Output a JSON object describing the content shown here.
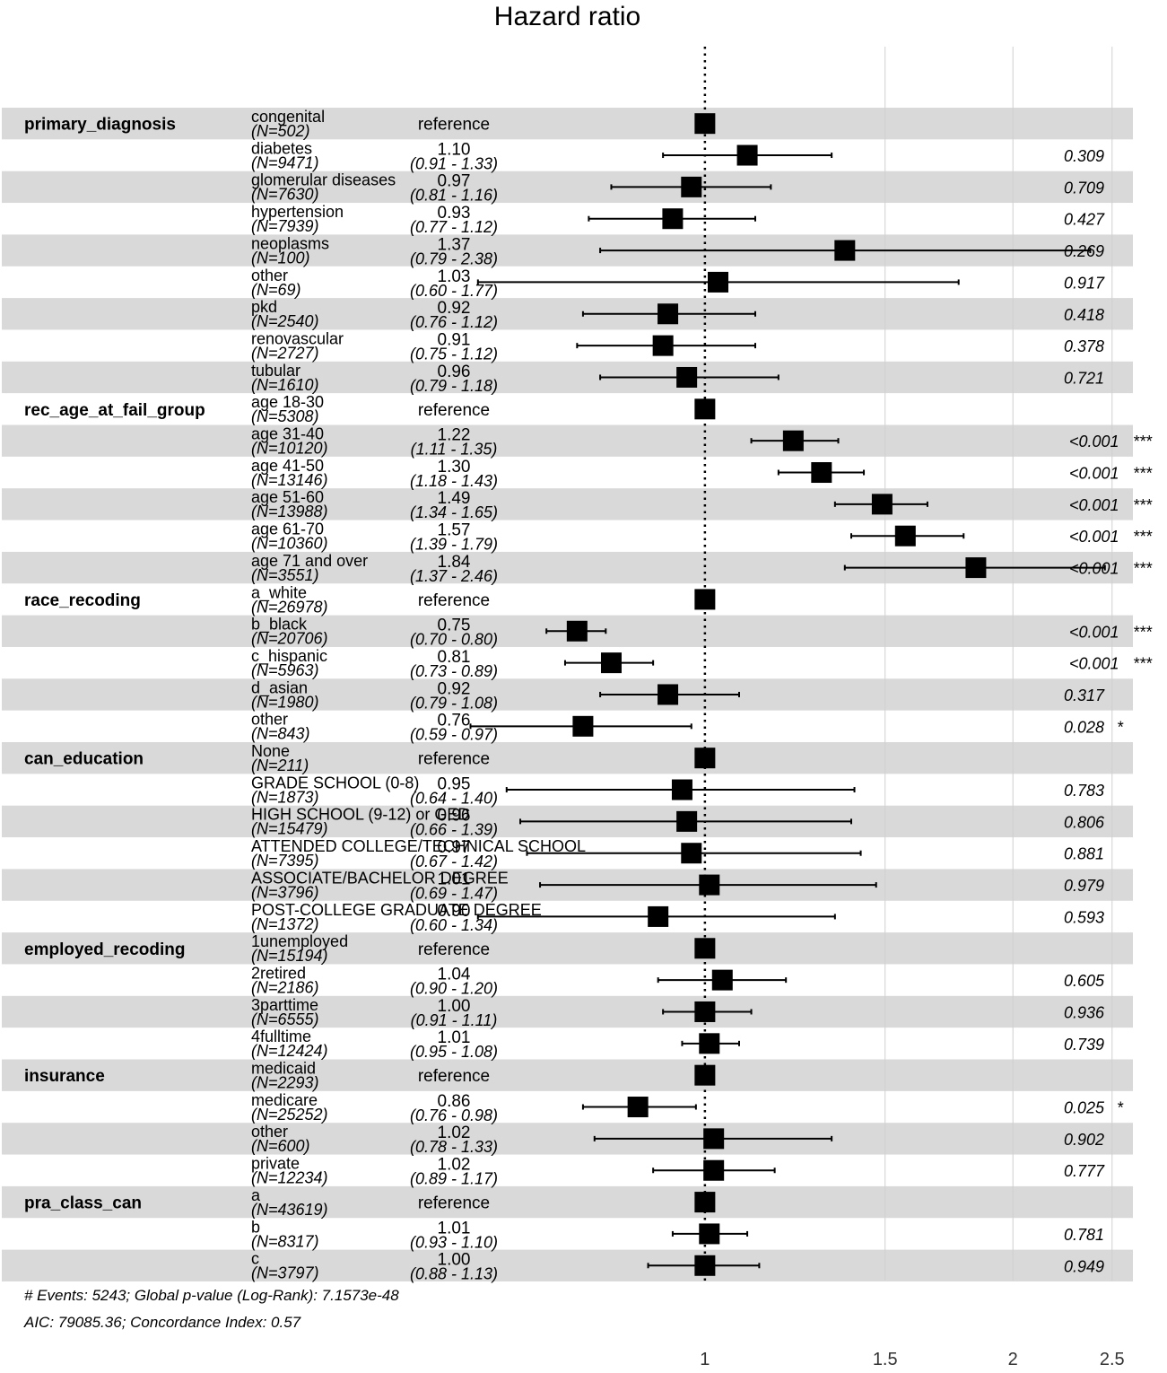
{
  "chart_data": {
    "type": "forest",
    "title": "Hazard ratio",
    "x_scale": "log",
    "xlim": [
      0.61,
      2.62
    ],
    "reference_line": 1,
    "x_ticks": [
      1,
      1.5,
      2,
      2.5
    ],
    "x_tick_labels": [
      "1",
      "1.5",
      "2",
      "2.5"
    ],
    "groups": [
      {
        "variable": "primary_diagnosis",
        "rows": [
          {
            "level": "congenital",
            "n": "(N=502)",
            "hr": 1.0,
            "estimate": "reference",
            "ci": "",
            "lower": null,
            "upper": null,
            "p": "",
            "stars": ""
          },
          {
            "level": "diabetes",
            "n": "(N=9471)",
            "hr": 1.1,
            "estimate": "1.10",
            "ci": "(0.91 - 1.33)",
            "lower": 0.91,
            "upper": 1.33,
            "p": "0.309",
            "stars": ""
          },
          {
            "level": "glomerular diseases",
            "n": "(N=7630)",
            "hr": 0.97,
            "estimate": "0.97",
            "ci": "(0.81 - 1.16)",
            "lower": 0.81,
            "upper": 1.16,
            "p": "0.709",
            "stars": ""
          },
          {
            "level": "hypertension",
            "n": "(N=7939)",
            "hr": 0.93,
            "estimate": "0.93",
            "ci": "(0.77 - 1.12)",
            "lower": 0.77,
            "upper": 1.12,
            "p": "0.427",
            "stars": ""
          },
          {
            "level": "neoplasms",
            "n": "(N=100)",
            "hr": 1.37,
            "estimate": "1.37",
            "ci": "(0.79 - 2.38)",
            "lower": 0.79,
            "upper": 2.38,
            "p": "0.269",
            "stars": ""
          },
          {
            "level": "other",
            "n": "(N=69)",
            "hr": 1.03,
            "estimate": "1.03",
            "ci": "(0.60 - 1.77)",
            "lower": 0.6,
            "upper": 1.77,
            "p": "0.917",
            "stars": ""
          },
          {
            "level": "pkd",
            "n": "(N=2540)",
            "hr": 0.92,
            "estimate": "0.92",
            "ci": "(0.76 - 1.12)",
            "lower": 0.76,
            "upper": 1.12,
            "p": "0.418",
            "stars": ""
          },
          {
            "level": "renovascular",
            "n": "(N=2727)",
            "hr": 0.91,
            "estimate": "0.91",
            "ci": "(0.75 - 1.12)",
            "lower": 0.75,
            "upper": 1.12,
            "p": "0.378",
            "stars": ""
          },
          {
            "level": "tubular",
            "n": "(N=1610)",
            "hr": 0.96,
            "estimate": "0.96",
            "ci": "(0.79 - 1.18)",
            "lower": 0.79,
            "upper": 1.18,
            "p": "0.721",
            "stars": ""
          }
        ]
      },
      {
        "variable": "rec_age_at_fail_group",
        "rows": [
          {
            "level": "age 18-30",
            "n": "(N=5308)",
            "hr": 1.0,
            "estimate": "reference",
            "ci": "",
            "lower": null,
            "upper": null,
            "p": "",
            "stars": ""
          },
          {
            "level": "age 31-40",
            "n": "(N=10120)",
            "hr": 1.22,
            "estimate": "1.22",
            "ci": "(1.11 - 1.35)",
            "lower": 1.11,
            "upper": 1.35,
            "p": "<0.001",
            "stars": "***"
          },
          {
            "level": "age 41-50",
            "n": "(N=13146)",
            "hr": 1.3,
            "estimate": "1.30",
            "ci": "(1.18 - 1.43)",
            "lower": 1.18,
            "upper": 1.43,
            "p": "<0.001",
            "stars": "***"
          },
          {
            "level": "age 51-60",
            "n": "(N=13988)",
            "hr": 1.49,
            "estimate": "1.49",
            "ci": "(1.34 - 1.65)",
            "lower": 1.34,
            "upper": 1.65,
            "p": "<0.001",
            "stars": "***"
          },
          {
            "level": "age 61-70",
            "n": "(N=10360)",
            "hr": 1.57,
            "estimate": "1.57",
            "ci": "(1.39 - 1.79)",
            "lower": 1.39,
            "upper": 1.79,
            "p": "<0.001",
            "stars": "***"
          },
          {
            "level": "age 71 and over",
            "n": "(N=3551)",
            "hr": 1.84,
            "estimate": "1.84",
            "ci": "(1.37 - 2.46)",
            "lower": 1.37,
            "upper": 2.46,
            "p": "<0.001",
            "stars": "***"
          }
        ]
      },
      {
        "variable": "race_recoding",
        "rows": [
          {
            "level": "a_white",
            "n": "(N=26978)",
            "hr": 1.0,
            "estimate": "reference",
            "ci": "",
            "lower": null,
            "upper": null,
            "p": "",
            "stars": ""
          },
          {
            "level": "b_black",
            "n": "(N=20706)",
            "hr": 0.75,
            "estimate": "0.75",
            "ci": "(0.70 - 0.80)",
            "lower": 0.7,
            "upper": 0.8,
            "p": "<0.001",
            "stars": "***"
          },
          {
            "level": "c_hispanic",
            "n": "(N=5963)",
            "hr": 0.81,
            "estimate": "0.81",
            "ci": "(0.73 - 0.89)",
            "lower": 0.73,
            "upper": 0.89,
            "p": "<0.001",
            "stars": "***"
          },
          {
            "level": "d_asian",
            "n": "(N=1980)",
            "hr": 0.92,
            "estimate": "0.92",
            "ci": "(0.79 - 1.08)",
            "lower": 0.79,
            "upper": 1.08,
            "p": "0.317",
            "stars": ""
          },
          {
            "level": "other",
            "n": "(N=843)",
            "hr": 0.76,
            "estimate": "0.76",
            "ci": "(0.59 - 0.97)",
            "lower": 0.59,
            "upper": 0.97,
            "p": "0.028",
            "stars": "*"
          }
        ]
      },
      {
        "variable": "can_education",
        "rows": [
          {
            "level": "None",
            "n": "(N=211)",
            "hr": 1.0,
            "estimate": "reference",
            "ci": "",
            "lower": null,
            "upper": null,
            "p": "",
            "stars": ""
          },
          {
            "level": "GRADE SCHOOL (0-8)",
            "n": "(N=1873)",
            "hr": 0.95,
            "estimate": "0.95",
            "ci": "(0.64 - 1.40)",
            "lower": 0.64,
            "upper": 1.4,
            "p": "0.783",
            "stars": ""
          },
          {
            "level": "HIGH SCHOOL (9-12) or GED",
            "n": "(N=15479)",
            "hr": 0.96,
            "estimate": "0.96",
            "ci": "(0.66 - 1.39)",
            "lower": 0.66,
            "upper": 1.39,
            "p": "0.806",
            "stars": ""
          },
          {
            "level": "ATTENDED COLLEGE/TECHNICAL SCHOOL",
            "n": "(N=7395)",
            "hr": 0.97,
            "estimate": "0.97",
            "ci": "(0.67 - 1.42)",
            "lower": 0.67,
            "upper": 1.42,
            "p": "0.881",
            "stars": ""
          },
          {
            "level": "ASSOCIATE/BACHELOR DEGREE",
            "n": "(N=3796)",
            "hr": 1.01,
            "estimate": "1.01",
            "ci": "(0.69 - 1.47)",
            "lower": 0.69,
            "upper": 1.47,
            "p": "0.979",
            "stars": ""
          },
          {
            "level": "POST-COLLEGE GRADUATE DEGREE",
            "n": "(N=1372)",
            "hr": 0.9,
            "estimate": "0.90",
            "ci": "(0.60 - 1.34)",
            "lower": 0.6,
            "upper": 1.34,
            "p": "0.593",
            "stars": ""
          }
        ]
      },
      {
        "variable": "employed_recoding",
        "rows": [
          {
            "level": "1unemployed",
            "n": "(N=15194)",
            "hr": 1.0,
            "estimate": "reference",
            "ci": "",
            "lower": null,
            "upper": null,
            "p": "",
            "stars": ""
          },
          {
            "level": "2retired",
            "n": "(N=2186)",
            "hr": 1.04,
            "estimate": "1.04",
            "ci": "(0.90 - 1.20)",
            "lower": 0.9,
            "upper": 1.2,
            "p": "0.605",
            "stars": ""
          },
          {
            "level": "3parttime",
            "n": "(N=6555)",
            "hr": 1.0,
            "estimate": "1.00",
            "ci": "(0.91 - 1.11)",
            "lower": 0.91,
            "upper": 1.11,
            "p": "0.936",
            "stars": ""
          },
          {
            "level": "4fulltime",
            "n": "(N=12424)",
            "hr": 1.01,
            "estimate": "1.01",
            "ci": "(0.95 - 1.08)",
            "lower": 0.95,
            "upper": 1.08,
            "p": "0.739",
            "stars": ""
          }
        ]
      },
      {
        "variable": "insurance",
        "rows": [
          {
            "level": "medicaid",
            "n": "(N=2293)",
            "hr": 1.0,
            "estimate": "reference",
            "ci": "",
            "lower": null,
            "upper": null,
            "p": "",
            "stars": ""
          },
          {
            "level": "medicare",
            "n": "(N=25252)",
            "hr": 0.86,
            "estimate": "0.86",
            "ci": "(0.76 - 0.98)",
            "lower": 0.76,
            "upper": 0.98,
            "p": "0.025",
            "stars": "*"
          },
          {
            "level": "other",
            "n": "(N=600)",
            "hr": 1.02,
            "estimate": "1.02",
            "ci": "(0.78 - 1.33)",
            "lower": 0.78,
            "upper": 1.33,
            "p": "0.902",
            "stars": ""
          },
          {
            "level": "private",
            "n": "(N=12234)",
            "hr": 1.02,
            "estimate": "1.02",
            "ci": "(0.89 - 1.17)",
            "lower": 0.89,
            "upper": 1.17,
            "p": "0.777",
            "stars": ""
          }
        ]
      },
      {
        "variable": "pra_class_can",
        "rows": [
          {
            "level": "a",
            "n": "(N=43619)",
            "hr": 1.0,
            "estimate": "reference",
            "ci": "",
            "lower": null,
            "upper": null,
            "p": "",
            "stars": ""
          },
          {
            "level": "b",
            "n": "(N=8317)",
            "hr": 1.01,
            "estimate": "1.01",
            "ci": "(0.93 - 1.10)",
            "lower": 0.93,
            "upper": 1.1,
            "p": "0.781",
            "stars": ""
          },
          {
            "level": "c",
            "n": "(N=3797)",
            "hr": 1.0,
            "estimate": "1.00",
            "ci": "(0.88 - 1.13)",
            "lower": 0.88,
            "upper": 1.13,
            "p": "0.949",
            "stars": ""
          }
        ]
      }
    ],
    "footnotes": [
      "# Events: 5243; Global p-value (Log-Rank): 7.1573e-48",
      "AIC: 79085.36; Concordance Index: 0.57"
    ],
    "colors": {
      "band": "#d9d9d9",
      "grid": "#d0d0d0",
      "mark": "#000000"
    }
  }
}
